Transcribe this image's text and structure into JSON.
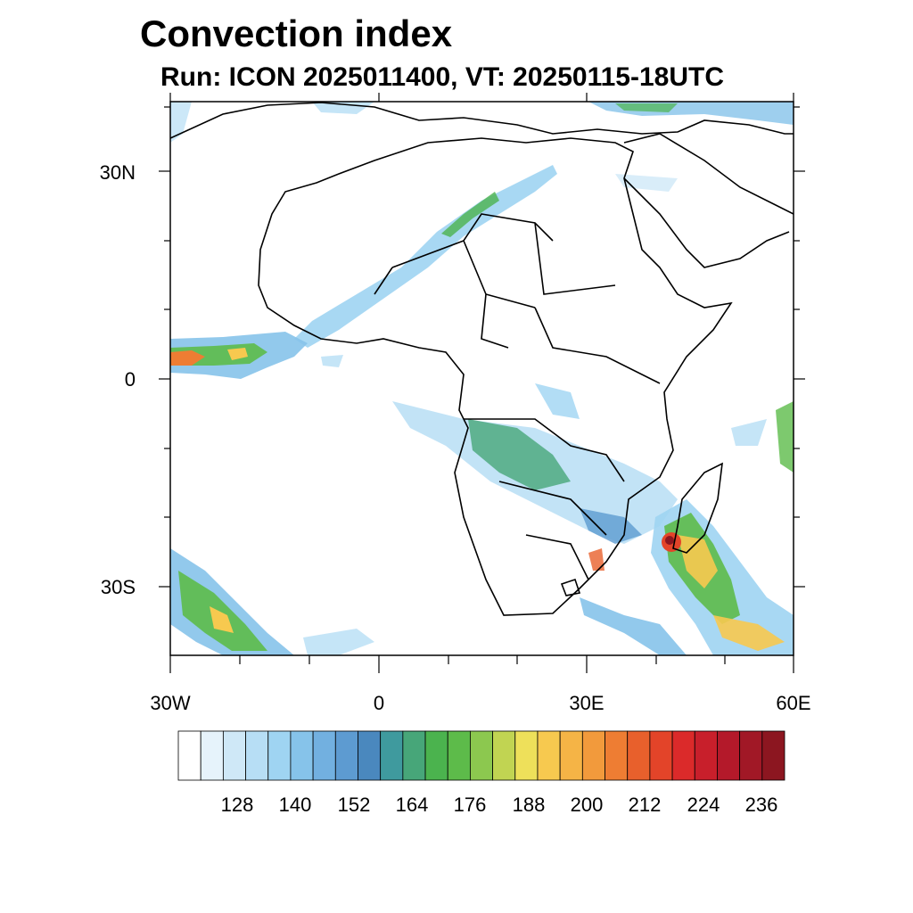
{
  "title": "Convection index",
  "subtitle": "Run: ICON 2025011400,  VT: 20250115-18UTC",
  "map": {
    "lon_range": [
      -30,
      60
    ],
    "lat_range": [
      -40,
      40
    ],
    "lat_ticks": [
      {
        "value": 30,
        "label": "30N"
      },
      {
        "value": 0,
        "label": "0"
      },
      {
        "value": -30,
        "label": "30S"
      }
    ],
    "lon_ticks": [
      {
        "value": -30,
        "label": "30W"
      },
      {
        "value": 0,
        "label": "0"
      },
      {
        "value": 30,
        "label": "30E"
      },
      {
        "value": 60,
        "label": "60E"
      }
    ]
  },
  "colorbar": {
    "colors": [
      "#ffffff",
      "#e6f3fb",
      "#cfe8f7",
      "#b7def5",
      "#9fd4f2",
      "#86c3ea",
      "#72b0e0",
      "#5d9bd1",
      "#4a88be",
      "#3f9a9e",
      "#47a679",
      "#4bb34e",
      "#5dbb4a",
      "#8cc84f",
      "#c1d452",
      "#eee05a",
      "#f7c94f",
      "#f5b446",
      "#f29a3c",
      "#ee7d33",
      "#e8602c",
      "#e34429",
      "#db2a2a",
      "#c81f2b",
      "#b4192a",
      "#a11826",
      "#8c1620"
    ],
    "labels": [
      "128",
      "140",
      "152",
      "164",
      "176",
      "188",
      "200",
      "212",
      "224",
      "236"
    ]
  }
}
